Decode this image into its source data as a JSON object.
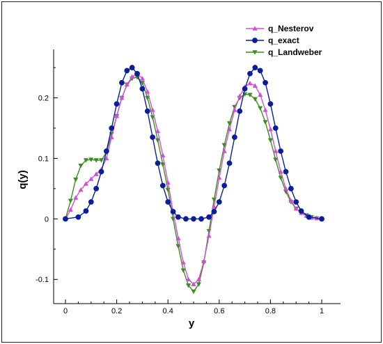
{
  "chart_data": {
    "type": "line",
    "title": "",
    "xlabel": "y",
    "ylabel": "q(y)",
    "xlim": [
      0,
      1.0
    ],
    "ylim": [
      -0.14,
      0.28
    ],
    "xticks": [
      "0",
      "0.2",
      "0.4",
      "0.6",
      "0.8",
      "1"
    ],
    "xtick_values": [
      0,
      0.2,
      0.4,
      0.6,
      0.8,
      1.0
    ],
    "yticks": [
      "-0.1",
      "0",
      "0.1",
      "0.2"
    ],
    "ytick_values": [
      -0.1,
      0,
      0.1,
      0.2
    ],
    "grid": false,
    "legend_position": "top-right",
    "series": [
      {
        "name": "q_Nesterov",
        "color": "#d24fd6",
        "marker": "triangle-up",
        "x": [
          0.0,
          0.02,
          0.04,
          0.06,
          0.08,
          0.1,
          0.12,
          0.14,
          0.16,
          0.18,
          0.2,
          0.22,
          0.24,
          0.26,
          0.28,
          0.3,
          0.32,
          0.34,
          0.36,
          0.38,
          0.4,
          0.42,
          0.44,
          0.46,
          0.48,
          0.5,
          0.52,
          0.54,
          0.56,
          0.58,
          0.6,
          0.62,
          0.64,
          0.66,
          0.68,
          0.7,
          0.72,
          0.74,
          0.76,
          0.78,
          0.8,
          0.82,
          0.84,
          0.86,
          0.88,
          0.9,
          0.92,
          0.94,
          0.96,
          0.98,
          1.0
        ],
        "y": [
          0.0,
          0.015,
          0.035,
          0.048,
          0.058,
          0.066,
          0.074,
          0.082,
          0.1,
          0.135,
          0.17,
          0.2,
          0.222,
          0.235,
          0.24,
          0.232,
          0.21,
          0.18,
          0.145,
          0.105,
          0.06,
          0.012,
          -0.032,
          -0.072,
          -0.1,
          -0.108,
          -0.1,
          -0.07,
          -0.028,
          0.02,
          0.068,
          0.112,
          0.148,
          0.18,
          0.203,
          0.218,
          0.224,
          0.22,
          0.205,
          0.18,
          0.148,
          0.112,
          0.078,
          0.05,
          0.03,
          0.017,
          0.01,
          0.005,
          0.002,
          0.001,
          0.0
        ]
      },
      {
        "name": "q_exact",
        "color": "#0a1e9c",
        "marker": "circle",
        "x": [
          0.0,
          0.05,
          0.08,
          0.1,
          0.12,
          0.14,
          0.16,
          0.18,
          0.2,
          0.22,
          0.24,
          0.26,
          0.28,
          0.3,
          0.32,
          0.34,
          0.36,
          0.38,
          0.4,
          0.42,
          0.44,
          0.47,
          0.5,
          0.53,
          0.56,
          0.58,
          0.6,
          0.62,
          0.64,
          0.66,
          0.68,
          0.7,
          0.72,
          0.74,
          0.76,
          0.78,
          0.8,
          0.82,
          0.84,
          0.86,
          0.88,
          0.9,
          0.92,
          0.95,
          1.0
        ],
        "y": [
          0.0,
          0.003,
          0.013,
          0.028,
          0.05,
          0.078,
          0.112,
          0.15,
          0.19,
          0.225,
          0.245,
          0.25,
          0.24,
          0.215,
          0.178,
          0.135,
          0.092,
          0.055,
          0.028,
          0.012,
          0.003,
          0.0,
          0.0,
          0.0,
          0.003,
          0.012,
          0.028,
          0.055,
          0.092,
          0.135,
          0.178,
          0.215,
          0.24,
          0.25,
          0.245,
          0.225,
          0.19,
          0.15,
          0.112,
          0.078,
          0.05,
          0.028,
          0.013,
          0.003,
          0.0
        ]
      },
      {
        "name": "q_Landweber",
        "color": "#3a8f1c",
        "marker": "triangle-down",
        "x": [
          0.0,
          0.02,
          0.04,
          0.06,
          0.08,
          0.1,
          0.12,
          0.14,
          0.16,
          0.18,
          0.2,
          0.22,
          0.24,
          0.26,
          0.28,
          0.3,
          0.32,
          0.34,
          0.36,
          0.38,
          0.4,
          0.42,
          0.44,
          0.46,
          0.48,
          0.5,
          0.52,
          0.54,
          0.56,
          0.58,
          0.6,
          0.62,
          0.64,
          0.66,
          0.68,
          0.7,
          0.72,
          0.74,
          0.76,
          0.78,
          0.8,
          0.82,
          0.84,
          0.86,
          0.88,
          0.9,
          0.92,
          0.94,
          0.96,
          0.98,
          1.0
        ],
        "y": [
          0.0,
          0.03,
          0.065,
          0.088,
          0.097,
          0.098,
          0.097,
          0.097,
          0.11,
          0.14,
          0.17,
          0.2,
          0.222,
          0.232,
          0.234,
          0.225,
          0.2,
          0.168,
          0.13,
          0.09,
          0.048,
          0.0,
          -0.045,
          -0.085,
          -0.11,
          -0.12,
          -0.108,
          -0.072,
          -0.02,
          0.032,
          0.08,
          0.122,
          0.158,
          0.185,
          0.2,
          0.206,
          0.205,
          0.198,
          0.183,
          0.16,
          0.13,
          0.098,
          0.068,
          0.045,
          0.028,
          0.017,
          0.01,
          0.006,
          0.003,
          0.001,
          0.0
        ]
      }
    ]
  }
}
